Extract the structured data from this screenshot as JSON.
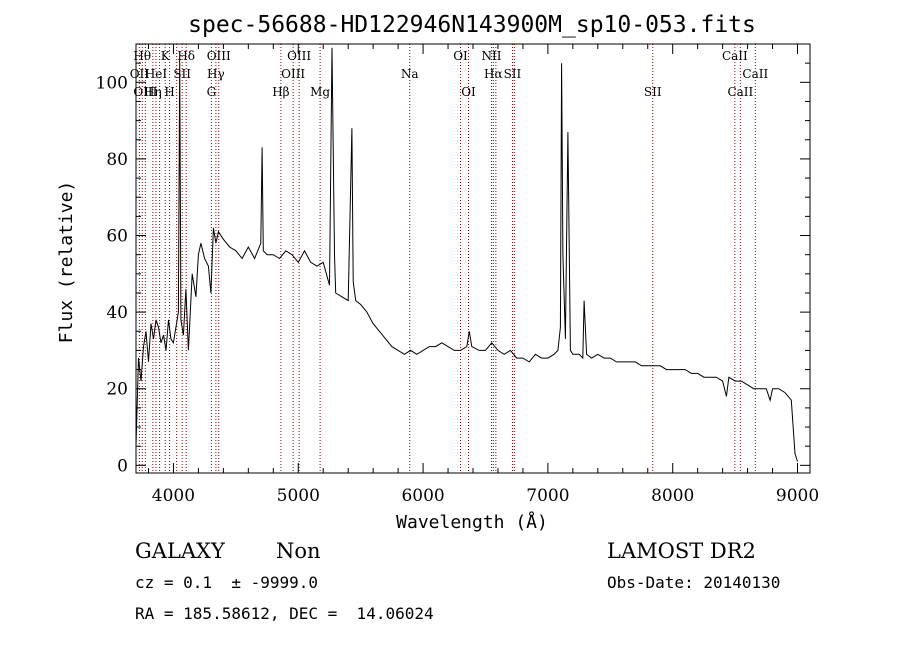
{
  "chart_data": {
    "type": "line",
    "title": "spec-56688-HD122946N143900M_sp10-053.fits",
    "xlabel": "Wavelength (Å)",
    "ylabel": "Flux (relative)",
    "xlim": [
      3700,
      9100
    ],
    "ylim": [
      -2,
      110
    ],
    "x_ticks": [
      4000,
      5000,
      6000,
      7000,
      8000,
      9000
    ],
    "y_ticks": [
      0,
      20,
      40,
      60,
      80,
      100
    ],
    "grid": false,
    "legend": "none",
    "line_color": "#000000",
    "marker_color": "#8b0000",
    "series": [
      {
        "x": [
          3700,
          3720,
          3740,
          3760,
          3780,
          3800,
          3820,
          3840,
          3860,
          3880,
          3900,
          3920,
          3940,
          3960,
          3980,
          4000,
          4020,
          4040,
          4050,
          4060,
          4080,
          4100,
          4120,
          4150,
          4180,
          4200,
          4220,
          4250,
          4280,
          4300,
          4320,
          4340,
          4360,
          4400,
          4450,
          4500,
          4550,
          4600,
          4650,
          4700,
          4710,
          4720,
          4750,
          4800,
          4850,
          4900,
          4950,
          5000,
          5050,
          5100,
          5150,
          5200,
          5250,
          5270,
          5290,
          5300,
          5350,
          5400,
          5430,
          5440,
          5460,
          5500,
          5550,
          5600,
          5650,
          5700,
          5750,
          5800,
          5850,
          5900,
          5950,
          6000,
          6050,
          6100,
          6150,
          6200,
          6250,
          6300,
          6350,
          6370,
          6390,
          6450,
          6500,
          6550,
          6600,
          6650,
          6700,
          6750,
          6800,
          6850,
          6900,
          6950,
          7000,
          7050,
          7080,
          7100,
          7110,
          7120,
          7140,
          7160,
          7180,
          7200,
          7250,
          7280,
          7290,
          7310,
          7350,
          7400,
          7450,
          7500,
          7550,
          7600,
          7650,
          7700,
          7750,
          7800,
          7850,
          7900,
          7950,
          8000,
          8050,
          8100,
          8150,
          8200,
          8250,
          8300,
          8350,
          8400,
          8430,
          8450,
          8500,
          8550,
          8600,
          8650,
          8700,
          8750,
          8780,
          8800,
          8850,
          8900,
          8950,
          8980,
          9000
        ],
        "y": [
          5,
          28,
          22,
          31,
          35,
          27,
          37,
          33,
          38,
          36,
          32,
          34,
          30,
          38,
          33,
          32,
          36,
          40,
          106,
          38,
          34,
          46,
          30,
          50,
          44,
          55,
          58,
          54,
          52,
          45,
          62,
          58,
          61,
          59,
          57,
          56,
          54,
          57,
          54,
          58,
          83,
          56,
          55,
          55,
          54,
          56,
          55,
          53,
          56,
          53,
          52,
          53,
          47,
          109,
          55,
          45,
          44,
          43,
          88,
          48,
          43,
          42,
          40,
          37,
          35,
          33,
          31,
          30,
          29,
          30,
          29,
          30,
          31,
          31,
          32,
          31,
          30,
          30,
          31,
          35,
          31,
          30,
          30,
          32,
          30,
          29,
          30,
          28,
          28,
          27,
          29,
          28,
          28,
          29,
          30,
          36,
          105,
          55,
          33,
          87,
          30,
          29,
          29,
          28,
          43,
          29,
          28,
          29,
          28,
          28,
          27,
          27,
          27,
          27,
          26,
          26,
          26,
          26,
          25,
          25,
          25,
          25,
          24,
          24,
          23,
          23,
          23,
          22,
          18,
          23,
          22,
          22,
          21,
          20,
          20,
          20,
          17,
          20,
          20,
          19,
          17,
          3,
          1
        ]
      }
    ],
    "lines": [
      {
        "x": 3727,
        "label": "OII",
        "row": 1
      },
      {
        "x": 3750,
        "label": "Hθ",
        "row": 0
      },
      {
        "x": 3775,
        "label": "OIII",
        "row": 2
      },
      {
        "x": 3835,
        "label": "Hη",
        "row": 2
      },
      {
        "x": 3860,
        "label": "HeI",
        "row": 1
      },
      {
        "x": 3889,
        "label": "",
        "row": 0
      },
      {
        "x": 3934,
        "label": "K",
        "row": 0
      },
      {
        "x": 3969,
        "label": "H",
        "row": 2
      },
      {
        "x": 4026,
        "label": "",
        "row": 1
      },
      {
        "x": 4070,
        "label": "SII",
        "row": 1
      },
      {
        "x": 4102,
        "label": "Hδ",
        "row": 0
      },
      {
        "x": 4304,
        "label": "G",
        "row": 2
      },
      {
        "x": 4340,
        "label": "Hγ",
        "row": 1
      },
      {
        "x": 4363,
        "label": "OIII",
        "row": 0
      },
      {
        "x": 4861,
        "label": "Hβ",
        "row": 2
      },
      {
        "x": 4959,
        "label": "OIII",
        "row": 1
      },
      {
        "x": 5007,
        "label": "OIII",
        "row": 0
      },
      {
        "x": 5175,
        "label": "Mg",
        "row": 2
      },
      {
        "x": 5893,
        "label": "Na",
        "row": 1
      },
      {
        "x": 6300,
        "label": "OI",
        "row": 0
      },
      {
        "x": 6364,
        "label": "OI",
        "row": 2
      },
      {
        "x": 6548,
        "label": "NII",
        "row": 0
      },
      {
        "x": 6563,
        "label": "Hα",
        "row": 1
      },
      {
        "x": 6583,
        "label": "",
        "row": 0
      },
      {
        "x": 6716,
        "label": "SII",
        "row": 1
      },
      {
        "x": 6731,
        "label": "",
        "row": 1
      },
      {
        "x": 7840,
        "label": "SII",
        "row": 2
      },
      {
        "x": 8498,
        "label": "CaII",
        "row": 0
      },
      {
        "x": 8542,
        "label": "CaII",
        "row": 2
      },
      {
        "x": 8662,
        "label": "CaII",
        "row": 1
      }
    ]
  },
  "info": {
    "object_class": "GALAXY",
    "subclass": "Non",
    "survey": "LAMOST DR2",
    "cz": "cz = 0.1  ± -9999.0",
    "obs_date": "Obs-Date: 20140130",
    "coords": "RA = 185.58612, DEC =  14.06024"
  }
}
